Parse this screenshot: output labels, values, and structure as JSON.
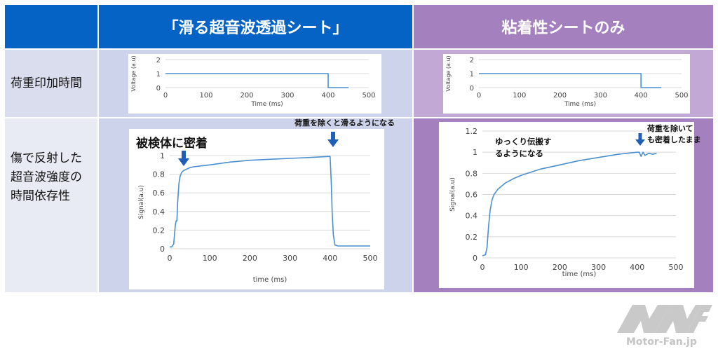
{
  "table": {
    "header_left": "「滑る超音波透過シート」",
    "header_right": "粘着性シートのみ",
    "row1_label": "荷重印加時間",
    "row2_label": "傷で反射した\n超音波強度の\n時間依存性"
  },
  "annotations": {
    "left_contact": "被検体に密着",
    "left_slide": "荷重を除くと滑るようになる",
    "right_slow": "ゆっくり伝搬す\nるようになる",
    "right_stick": "荷重を除いて\nも密着したまま"
  },
  "colors": {
    "header_left": "#0563c6",
    "header_right": "#a480bf",
    "row_left": "#cdd3ea",
    "row_right": "#c1a8d5",
    "label_bg": "#d9dded",
    "label_bg2": "#e9ebf4",
    "series": "#4a8fd0",
    "arrow": "#1f5fb8"
  },
  "logo": {
    "text": "Motor-Fan.jp"
  },
  "chart_data": [
    {
      "id": "voltage-left",
      "type": "line",
      "xlabel": "Time (ms)",
      "ylabel": "Voltage (a.u)",
      "xlim": [
        0,
        500
      ],
      "ylim": [
        0,
        2
      ],
      "xticks": [
        "0",
        "100",
        "200",
        "300",
        "400",
        "500"
      ],
      "yticks": [
        "0",
        "1",
        "2"
      ],
      "grid": true,
      "series": [
        {
          "x": [
            0,
            400,
            400,
            450
          ],
          "y": [
            1,
            1,
            0,
            0
          ]
        }
      ]
    },
    {
      "id": "voltage-right",
      "type": "line",
      "xlabel": "Time (ms)",
      "ylabel": "Voltage (a.u)",
      "xlim": [
        0,
        500
      ],
      "ylim": [
        0,
        2
      ],
      "xticks": [
        "0",
        "100",
        "200",
        "300",
        "400",
        "500"
      ],
      "yticks": [
        "0",
        "1",
        "2"
      ],
      "grid": true,
      "series": [
        {
          "x": [
            0,
            400,
            400,
            450
          ],
          "y": [
            1,
            1,
            0,
            0
          ]
        }
      ]
    },
    {
      "id": "signal-left",
      "type": "line",
      "xlabel": "time (ms)",
      "ylabel": "Signal(a.u)",
      "xlim": [
        0,
        500
      ],
      "ylim": [
        0,
        1
      ],
      "xticks": [
        "0",
        "100",
        "200",
        "300",
        "400",
        "500"
      ],
      "yticks": [
        "0",
        "0.2",
        "0.4",
        "0.6",
        "0.8",
        "1"
      ],
      "grid": true,
      "series": [
        {
          "x": [
            0,
            5,
            10,
            14,
            16,
            18,
            20,
            23,
            26,
            30,
            35,
            40,
            50,
            60,
            80,
            100,
            150,
            200,
            250,
            300,
            350,
            395,
            400,
            403,
            405,
            408,
            412,
            420,
            450,
            500
          ],
          "y": [
            0.02,
            0.02,
            0.05,
            0.25,
            0.3,
            0.3,
            0.5,
            0.7,
            0.78,
            0.82,
            0.84,
            0.85,
            0.87,
            0.88,
            0.89,
            0.9,
            0.93,
            0.95,
            0.96,
            0.97,
            0.98,
            0.99,
            0.99,
            0.7,
            0.4,
            0.15,
            0.04,
            0.03,
            0.03,
            0.03
          ]
        }
      ]
    },
    {
      "id": "signal-right",
      "type": "line",
      "xlabel": "time (ms)",
      "ylabel": "Signal(a.u)",
      "xlim": [
        0,
        500
      ],
      "ylim": [
        0,
        1.2
      ],
      "xticks": [
        "0",
        "100",
        "200",
        "300",
        "400",
        "500"
      ],
      "yticks": [
        "0",
        "0.2",
        "0.4",
        "0.6",
        "0.8",
        "1",
        "1.2"
      ],
      "grid": true,
      "series": [
        {
          "x": [
            0,
            8,
            12,
            16,
            20,
            25,
            30,
            40,
            50,
            60,
            80,
            100,
            150,
            200,
            250,
            300,
            350,
            400,
            405,
            410,
            415,
            420,
            430,
            440,
            450
          ],
          "y": [
            0.02,
            0.03,
            0.1,
            0.3,
            0.45,
            0.55,
            0.6,
            0.65,
            0.68,
            0.71,
            0.75,
            0.78,
            0.84,
            0.88,
            0.92,
            0.95,
            0.98,
            1.0,
            1.0,
            0.96,
            1.0,
            0.97,
            0.99,
            0.98,
            0.99
          ]
        }
      ]
    }
  ]
}
